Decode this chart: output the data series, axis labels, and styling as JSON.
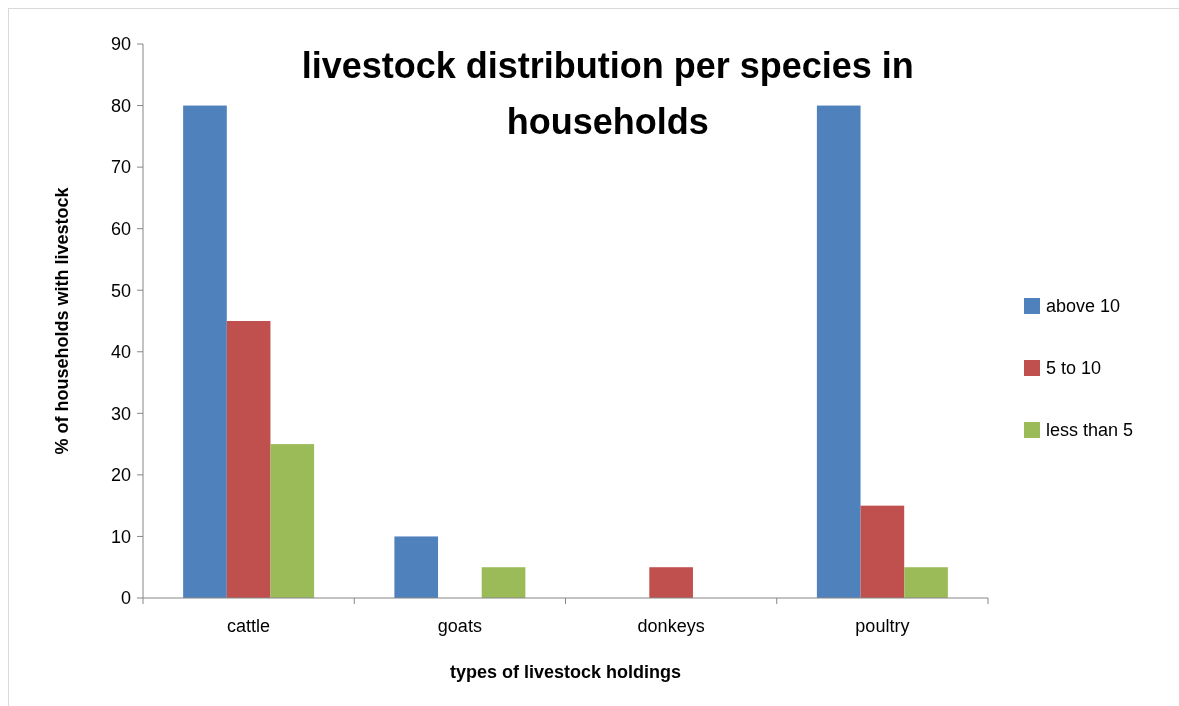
{
  "chart_data": {
    "type": "bar",
    "title": "livestock distribution per species in households",
    "xlabel": "types of livestock holdings",
    "ylabel": "% of  households with livestock",
    "categories": [
      "cattle",
      "goats",
      "donkeys",
      "poultry"
    ],
    "series": [
      {
        "name": "above 10",
        "color": "#4f81bd",
        "values": [
          80,
          10,
          0,
          80
        ]
      },
      {
        "name": "5 to 10",
        "color": "#c0504d",
        "values": [
          45,
          0,
          5,
          15
        ]
      },
      {
        "name": "less than 5",
        "color": "#9bbb59",
        "values": [
          25,
          5,
          0,
          5
        ]
      }
    ],
    "ylim": [
      0,
      90
    ],
    "yticks": [
      0,
      10,
      20,
      30,
      40,
      50,
      60,
      70,
      80,
      90
    ],
    "grid": false,
    "legend": "right"
  }
}
